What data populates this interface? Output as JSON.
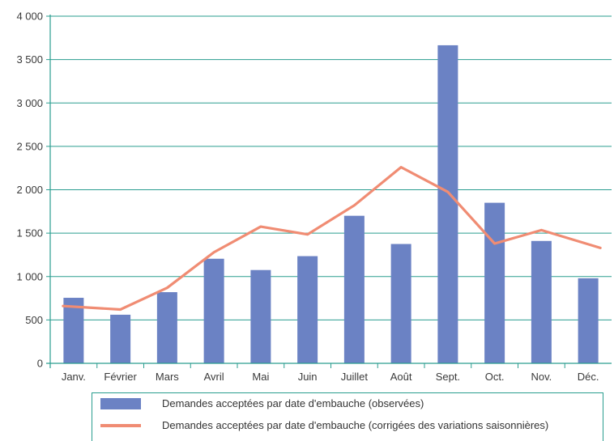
{
  "colors": {
    "bar": "#6b82c4",
    "line": "#f08c73",
    "grid": "#2a9d8f",
    "axis": "#2a9d8f"
  },
  "chart_data": {
    "type": "bar",
    "categories": [
      "Janv.",
      "Février",
      "Mars",
      "Avril",
      "Mai",
      "Juin",
      "Juillet",
      "Août",
      "Sept.",
      "Oct.",
      "Nov.",
      "Déc."
    ],
    "ylim": [
      0,
      4000
    ],
    "yticks": [
      0,
      500,
      1000,
      1500,
      2000,
      2500,
      3000,
      3500,
      4000
    ],
    "ytick_labels": [
      "0",
      "500",
      "1 000",
      "1 500",
      "2 000",
      "2 500",
      "3 000",
      "3 500",
      "4 000"
    ],
    "grid": true,
    "legend_position": "bottom",
    "series": [
      {
        "name": "Demandes acceptées par date d'embauche (observées)",
        "type": "bar",
        "values": [
          755,
          560,
          820,
          1205,
          1075,
          1235,
          1700,
          1375,
          3665,
          1850,
          1410,
          980
        ]
      },
      {
        "name": "Demandes acceptées par date d'embauche (corrigées des variations saisonnières)",
        "type": "line",
        "values": [
          660,
          620,
          870,
          1280,
          1575,
          1485,
          1820,
          2260,
          1975,
          1380,
          1535,
          1330
        ]
      }
    ]
  }
}
